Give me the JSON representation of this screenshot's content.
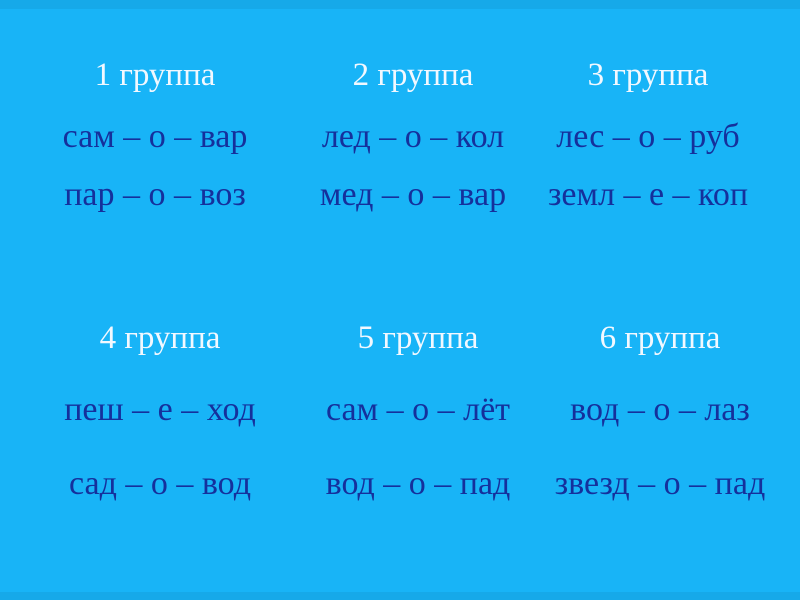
{
  "slide": {
    "background_color": "#18b4f7",
    "edge_strip_color": "#16a9e9",
    "heading_color": "#f2f8ff",
    "word_color": "#15309c"
  },
  "groups": [
    {
      "label": "1 группа",
      "words": [
        "сам – о – вар",
        "пар – о – воз"
      ]
    },
    {
      "label": "2 группа",
      "words": [
        "лед – о – кол",
        "мед – о – вар"
      ]
    },
    {
      "label": "3 группа",
      "words": [
        "лес – о – руб",
        "земл – е – коп"
      ]
    },
    {
      "label": "4 группа",
      "words": [
        "пеш – е – ход",
        "сад – о – вод"
      ]
    },
    {
      "label": "5 группа",
      "words": [
        "сам – о – лёт",
        "вод – о – пад"
      ]
    },
    {
      "label": "6 группа",
      "words": [
        "вод – о – лаз",
        "звезд – о – пад"
      ]
    }
  ]
}
